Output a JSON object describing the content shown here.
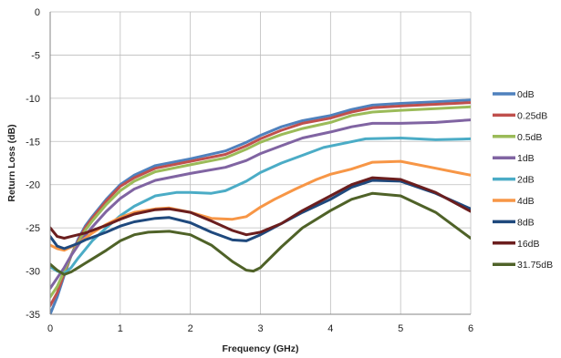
{
  "chart_data": {
    "type": "line",
    "title": "",
    "xlabel": "Frequency (GHz)",
    "ylabel": "Return Loss (dB)",
    "xlim": [
      0,
      6
    ],
    "ylim": [
      -35,
      0
    ],
    "xticks": [
      0,
      1,
      2,
      3,
      4,
      5,
      6
    ],
    "yticks": [
      0,
      -5,
      -10,
      -15,
      -20,
      -25,
      -30,
      -35
    ],
    "grid": true,
    "legend_position": "right",
    "series": [
      {
        "name": "0dB",
        "color": "#4f81bd",
        "x": [
          0.0,
          0.1,
          0.2,
          0.3,
          0.4,
          0.5,
          0.6,
          0.8,
          1.0,
          1.2,
          1.5,
          2.0,
          2.5,
          2.8,
          3.0,
          3.3,
          3.6,
          4.0,
          4.3,
          4.6,
          5.0,
          5.5,
          6.0
        ],
        "y": [
          -35,
          -33,
          -30.5,
          -28.2,
          -26.3,
          -24.8,
          -23.7,
          -21.7,
          -20.0,
          -18.9,
          -17.8,
          -17.0,
          -16.1,
          -15.1,
          -14.3,
          -13.3,
          -12.6,
          -12.0,
          -11.3,
          -10.8,
          -10.6,
          -10.4,
          -10.2
        ]
      },
      {
        "name": "0.25dB",
        "color": "#c0504d",
        "x": [
          0.0,
          0.1,
          0.2,
          0.3,
          0.4,
          0.5,
          0.6,
          0.8,
          1.0,
          1.2,
          1.5,
          2.0,
          2.5,
          2.8,
          3.0,
          3.3,
          3.6,
          4.0,
          4.3,
          4.6,
          5.0,
          5.5,
          6.0
        ],
        "y": [
          -34,
          -32.5,
          -30.3,
          -28.2,
          -26.5,
          -25.0,
          -23.9,
          -21.9,
          -20.2,
          -19.2,
          -18.1,
          -17.3,
          -16.5,
          -15.5,
          -14.7,
          -13.7,
          -12.9,
          -12.3,
          -11.6,
          -11.1,
          -10.9,
          -10.7,
          -10.5
        ]
      },
      {
        "name": "0.5dB",
        "color": "#9bbb59",
        "x": [
          0.0,
          0.1,
          0.2,
          0.3,
          0.4,
          0.5,
          0.6,
          0.8,
          1.0,
          1.2,
          1.5,
          2.0,
          2.5,
          2.8,
          3.0,
          3.3,
          3.6,
          4.0,
          4.3,
          4.6,
          5.0,
          5.5,
          6.0
        ],
        "y": [
          -33,
          -31.8,
          -30.0,
          -28.2,
          -26.7,
          -25.3,
          -24.2,
          -22.3,
          -20.7,
          -19.6,
          -18.5,
          -17.7,
          -16.9,
          -15.9,
          -15.1,
          -14.2,
          -13.5,
          -12.8,
          -12.0,
          -11.6,
          -11.4,
          -11.2,
          -11.0
        ]
      },
      {
        "name": "1dB",
        "color": "#8064a2",
        "x": [
          0.0,
          0.1,
          0.2,
          0.3,
          0.4,
          0.5,
          0.6,
          0.8,
          1.0,
          1.2,
          1.5,
          2.0,
          2.5,
          2.8,
          3.0,
          3.3,
          3.6,
          4.0,
          4.3,
          4.6,
          5.0,
          5.5,
          6.0
        ],
        "y": [
          -32,
          -30.8,
          -29.6,
          -28.2,
          -27.0,
          -25.9,
          -24.9,
          -23.1,
          -21.6,
          -20.5,
          -19.5,
          -18.7,
          -18.0,
          -17.2,
          -16.4,
          -15.5,
          -14.6,
          -13.9,
          -13.3,
          -12.9,
          -12.9,
          -12.8,
          -12.5
        ]
      },
      {
        "name": "2dB",
        "color": "#4bacc6",
        "x": [
          0.0,
          0.1,
          0.2,
          0.3,
          0.4,
          0.5,
          0.6,
          0.8,
          1.0,
          1.2,
          1.5,
          1.8,
          2.0,
          2.3,
          2.5,
          2.8,
          3.0,
          3.3,
          3.6,
          3.9,
          4.2,
          4.5,
          5.0,
          5.5,
          6.0
        ],
        "y": [
          -29.5,
          -30.0,
          -30.3,
          -29.6,
          -28.5,
          -27.5,
          -26.5,
          -25.0,
          -23.6,
          -22.5,
          -21.3,
          -20.9,
          -20.9,
          -21.0,
          -20.7,
          -19.6,
          -18.6,
          -17.5,
          -16.6,
          -15.7,
          -15.2,
          -14.7,
          -14.6,
          -14.8,
          -14.7
        ]
      },
      {
        "name": "4dB",
        "color": "#f79646",
        "x": [
          0.0,
          0.1,
          0.2,
          0.3,
          0.4,
          0.5,
          0.6,
          0.8,
          1.0,
          1.2,
          1.5,
          1.7,
          2.0,
          2.3,
          2.6,
          2.8,
          3.0,
          3.2,
          3.5,
          3.8,
          4.0,
          4.3,
          4.6,
          5.0,
          5.5,
          6.0
        ],
        "y": [
          -27.0,
          -27.4,
          -27.6,
          -27.2,
          -26.8,
          -26.2,
          -25.6,
          -24.6,
          -23.8,
          -23.2,
          -22.8,
          -22.7,
          -23.2,
          -23.9,
          -24.0,
          -23.7,
          -22.6,
          -21.7,
          -20.5,
          -19.4,
          -18.8,
          -18.2,
          -17.4,
          -17.3,
          -18.1,
          -18.9
        ]
      },
      {
        "name": "8dB",
        "color": "#1f497d",
        "x": [
          0.0,
          0.1,
          0.2,
          0.3,
          0.4,
          0.5,
          0.6,
          0.8,
          1.0,
          1.2,
          1.5,
          1.7,
          2.0,
          2.3,
          2.6,
          2.8,
          3.0,
          3.3,
          3.6,
          4.0,
          4.3,
          4.6,
          5.0,
          5.5,
          6.0
        ],
        "y": [
          -26.0,
          -27.1,
          -27.4,
          -27.1,
          -26.8,
          -26.4,
          -26.1,
          -25.5,
          -24.8,
          -24.3,
          -23.9,
          -23.8,
          -24.4,
          -25.5,
          -26.4,
          -26.5,
          -25.8,
          -24.5,
          -23.2,
          -21.7,
          -20.3,
          -19.5,
          -19.6,
          -21.0,
          -22.8
        ]
      },
      {
        "name": "16dB",
        "color": "#6b1e1e",
        "x": [
          0.0,
          0.1,
          0.2,
          0.3,
          0.4,
          0.5,
          0.6,
          0.8,
          1.0,
          1.2,
          1.5,
          1.7,
          2.0,
          2.3,
          2.6,
          2.8,
          3.0,
          3.3,
          3.6,
          4.0,
          4.3,
          4.6,
          5.0,
          5.5,
          6.0
        ],
        "y": [
          -25.0,
          -26.0,
          -26.2,
          -26.0,
          -25.8,
          -25.6,
          -25.3,
          -24.7,
          -24.0,
          -23.4,
          -22.9,
          -22.8,
          -23.2,
          -24.2,
          -25.3,
          -25.8,
          -25.5,
          -24.5,
          -23.0,
          -21.3,
          -20.0,
          -19.2,
          -19.4,
          -20.9,
          -23.1
        ]
      },
      {
        "name": "31.75dB",
        "color": "#4f6228",
        "x": [
          0.0,
          0.1,
          0.2,
          0.3,
          0.4,
          0.5,
          0.6,
          0.8,
          1.0,
          1.2,
          1.4,
          1.7,
          2.0,
          2.3,
          2.6,
          2.8,
          2.9,
          3.0,
          3.3,
          3.6,
          4.0,
          4.3,
          4.6,
          5.0,
          5.5,
          6.0
        ],
        "y": [
          -29.2,
          -29.9,
          -30.4,
          -30.1,
          -29.6,
          -29.1,
          -28.6,
          -27.6,
          -26.5,
          -25.8,
          -25.5,
          -25.4,
          -25.8,
          -27.0,
          -28.9,
          -29.9,
          -30.0,
          -29.6,
          -27.2,
          -25.0,
          -23.0,
          -21.7,
          -21.0,
          -21.3,
          -23.2,
          -26.2
        ]
      }
    ]
  }
}
